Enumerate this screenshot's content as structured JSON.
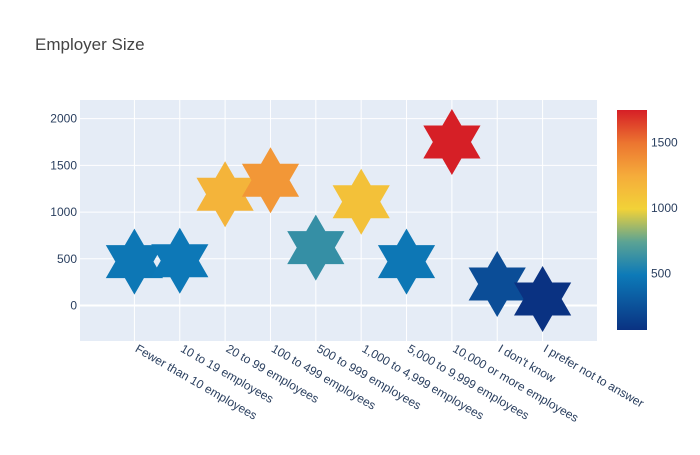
{
  "chart_data": {
    "type": "scatter",
    "title": "Employer Size",
    "xlabel": "",
    "ylabel": "",
    "categories": [
      "Fewer than 10 employees",
      "10 to 19 employees",
      "20 to 99 employees",
      "100 to 499 employees",
      "500 to 999 employees",
      "1,000 to 4,999 employees",
      "5,000 to 9,999 employees",
      "10,000 or more employees",
      "I don't know",
      "I prefer not to answer"
    ],
    "values": [
      470,
      480,
      1190,
      1340,
      620,
      1110,
      470,
      1750,
      230,
      70
    ],
    "ylim": [
      -380,
      2200
    ],
    "yticks": [
      0,
      500,
      1000,
      1500,
      2000
    ],
    "grid": true,
    "marker": "star-of-david",
    "colorscale": {
      "min": 70,
      "max": 1750,
      "ticks": [
        500,
        1000,
        1500
      ],
      "stops": [
        [
          0.0,
          "#0a3282"
        ],
        [
          0.25,
          "#0d7ab8"
        ],
        [
          0.4,
          "#5ba394"
        ],
        [
          0.55,
          "#f2d238"
        ],
        [
          0.7,
          "#f5ac3b"
        ],
        [
          0.85,
          "#ec7530"
        ],
        [
          1.0,
          "#d61f26"
        ]
      ]
    },
    "colors": {
      "plot_bg": "#e5ecf6",
      "grid": "#ffffff",
      "text": "#2a3f5f",
      "title": "#444444"
    }
  }
}
